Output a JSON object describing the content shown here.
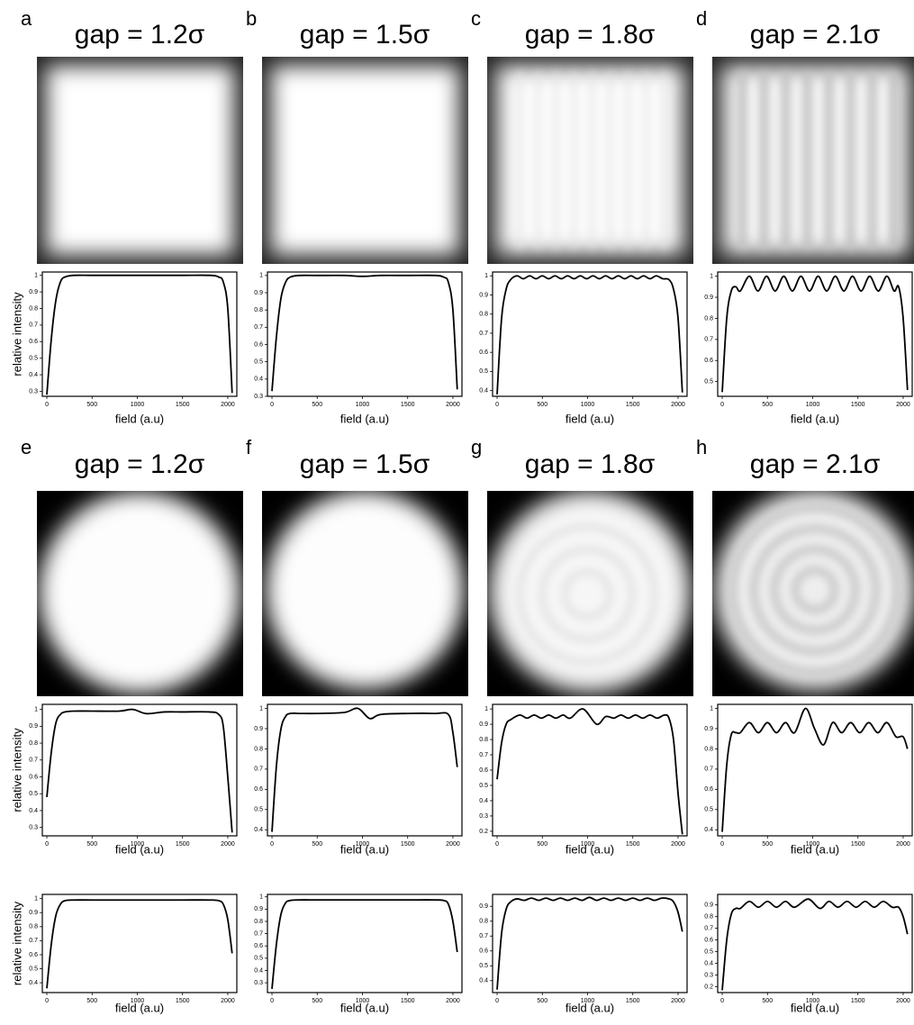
{
  "panels": [
    {
      "label": "a",
      "title": "gap = 1.2σ"
    },
    {
      "label": "b",
      "title": "gap = 1.5σ"
    },
    {
      "label": "c",
      "title": "gap = 1.8σ"
    },
    {
      "label": "d",
      "title": "gap = 2.1σ"
    },
    {
      "label": "e",
      "title": "gap = 1.2σ"
    },
    {
      "label": "f",
      "title": "gap = 1.5σ"
    },
    {
      "label": "g",
      "title": "gap = 1.8σ"
    },
    {
      "label": "h",
      "title": "gap = 2.1σ"
    }
  ],
  "chart_data": [
    {
      "type": "line",
      "ylabel": "relative intensity",
      "xlabel": "field (a.u)",
      "xlim": [
        -50,
        2100
      ],
      "xticks": [
        0,
        500,
        1000,
        1500,
        2000
      ],
      "ylim": [
        0.27,
        1.02
      ],
      "yticks": [
        0.3,
        0.4,
        0.5,
        0.6,
        0.7,
        0.8,
        0.9,
        1.0
      ],
      "x": [
        0,
        50,
        100,
        150,
        200,
        300,
        500,
        800,
        1000,
        1200,
        1500,
        1800,
        1900,
        1950,
        2000,
        2048
      ],
      "series": [
        {
          "color": "#000000",
          "values": [
            0.28,
            0.62,
            0.85,
            0.96,
            0.99,
            1.0,
            1.0,
            1.0,
            1.0,
            1.0,
            1.0,
            1.0,
            0.99,
            0.96,
            0.8,
            0.29
          ]
        }
      ]
    },
    {
      "type": "line",
      "xlabel": "field (a.u)",
      "xlim": [
        -50,
        2100
      ],
      "xticks": [
        0,
        500,
        1000,
        1500,
        2000
      ],
      "ylim": [
        0.3,
        1.02
      ],
      "yticks": [
        0.3,
        0.4,
        0.5,
        0.6,
        0.7,
        0.8,
        0.9,
        1.0
      ],
      "x": [
        0,
        50,
        100,
        150,
        200,
        300,
        500,
        800,
        1000,
        1200,
        1500,
        1800,
        1900,
        1950,
        2000,
        2048
      ],
      "series": [
        {
          "color": "#000000",
          "values": [
            0.33,
            0.65,
            0.87,
            0.96,
            0.99,
            1.0,
            1.0,
            1.0,
            0.995,
            1.0,
            1.0,
            1.0,
            0.99,
            0.96,
            0.8,
            0.34
          ]
        }
      ]
    },
    {
      "type": "line",
      "xlabel": "field (a.u)",
      "xlim": [
        -50,
        2100
      ],
      "xticks": [
        0,
        500,
        1000,
        1500,
        2000
      ],
      "ylim": [
        0.37,
        1.02
      ],
      "yticks": [
        0.4,
        0.5,
        0.6,
        0.7,
        0.8,
        0.9,
        1.0
      ],
      "x": [
        0,
        50,
        100,
        150,
        220,
        290,
        360,
        430,
        500,
        570,
        640,
        710,
        780,
        850,
        920,
        990,
        1060,
        1130,
        1200,
        1270,
        1340,
        1410,
        1480,
        1550,
        1620,
        1690,
        1760,
        1830,
        1900,
        1950,
        2000,
        2048
      ],
      "series": [
        {
          "color": "#000000",
          "values": [
            0.38,
            0.78,
            0.93,
            0.98,
            1.0,
            0.985,
            1.0,
            0.985,
            1.0,
            0.985,
            1.0,
            0.985,
            1.0,
            0.985,
            1.0,
            0.985,
            1.0,
            0.985,
            1.0,
            0.985,
            1.0,
            0.985,
            1.0,
            0.985,
            1.0,
            0.985,
            1.0,
            0.985,
            0.98,
            0.93,
            0.78,
            0.39
          ]
        }
      ]
    },
    {
      "type": "line",
      "xlabel": "field (a.u)",
      "xlim": [
        -50,
        2100
      ],
      "xticks": [
        0,
        500,
        1000,
        1500,
        2000
      ],
      "ylim": [
        0.43,
        1.02
      ],
      "yticks": [
        0.5,
        0.6,
        0.7,
        0.8,
        0.9,
        1.0
      ],
      "x": [
        0,
        50,
        100,
        150,
        200,
        300,
        395,
        490,
        585,
        680,
        775,
        870,
        965,
        1060,
        1155,
        1250,
        1345,
        1440,
        1535,
        1630,
        1725,
        1820,
        1900,
        1950,
        2000,
        2048
      ],
      "series": [
        {
          "color": "#000000",
          "values": [
            0.45,
            0.8,
            0.93,
            0.95,
            0.93,
            1.0,
            0.93,
            1.0,
            0.93,
            1.0,
            0.93,
            1.0,
            0.93,
            1.0,
            0.93,
            1.0,
            0.93,
            1.0,
            0.93,
            1.0,
            0.93,
            1.0,
            0.93,
            0.95,
            0.8,
            0.46
          ]
        }
      ]
    },
    {
      "type": "line",
      "ylabel": "relative intensity",
      "xlabel": "field (a.u)",
      "xlim": [
        -50,
        2100
      ],
      "xticks": [
        0,
        500,
        1000,
        1500,
        2000
      ],
      "ylim": [
        0.25,
        1.03
      ],
      "yticks": [
        0.3,
        0.4,
        0.5,
        0.6,
        0.7,
        0.8,
        0.9,
        1.0
      ],
      "x": [
        0,
        50,
        100,
        150,
        200,
        300,
        500,
        800,
        950,
        1100,
        1300,
        1500,
        1800,
        1900,
        1950,
        2000,
        2048
      ],
      "series": [
        {
          "color": "#000000",
          "values": [
            0.48,
            0.75,
            0.92,
            0.97,
            0.985,
            0.99,
            0.99,
            0.99,
            1.0,
            0.975,
            0.985,
            0.985,
            0.985,
            0.97,
            0.9,
            0.6,
            0.27
          ]
        }
      ]
    },
    {
      "type": "line",
      "xlabel": "field (a.u)",
      "xlim": [
        -50,
        2100
      ],
      "xticks": [
        0,
        500,
        1000,
        1500,
        2000
      ],
      "ylim": [
        0.37,
        1.02
      ],
      "yticks": [
        0.4,
        0.5,
        0.6,
        0.7,
        0.8,
        0.9,
        1.0
      ],
      "x": [
        0,
        50,
        100,
        150,
        200,
        300,
        500,
        800,
        950,
        1080,
        1200,
        1500,
        1800,
        1950,
        2000,
        2048
      ],
      "series": [
        {
          "color": "#000000",
          "values": [
            0.39,
            0.72,
            0.9,
            0.96,
            0.975,
            0.975,
            0.975,
            0.98,
            1.0,
            0.95,
            0.97,
            0.975,
            0.975,
            0.97,
            0.88,
            0.71
          ]
        }
      ]
    },
    {
      "type": "line",
      "xlabel": "field (a.u)",
      "xlim": [
        -50,
        2100
      ],
      "xticks": [
        0,
        500,
        1000,
        1500,
        2000
      ],
      "ylim": [
        0.17,
        1.03
      ],
      "yticks": [
        0.2,
        0.3,
        0.4,
        0.5,
        0.6,
        0.7,
        0.8,
        0.9,
        1.0
      ],
      "x": [
        0,
        50,
        100,
        150,
        250,
        330,
        410,
        490,
        570,
        650,
        730,
        810,
        950,
        1100,
        1200,
        1290,
        1370,
        1450,
        1530,
        1610,
        1690,
        1770,
        1850,
        1900,
        1950,
        2000,
        2048
      ],
      "series": [
        {
          "color": "#000000",
          "values": [
            0.54,
            0.78,
            0.9,
            0.93,
            0.96,
            0.94,
            0.96,
            0.94,
            0.96,
            0.94,
            0.96,
            0.94,
            1.0,
            0.9,
            0.95,
            0.94,
            0.96,
            0.94,
            0.96,
            0.94,
            0.96,
            0.94,
            0.96,
            0.94,
            0.8,
            0.45,
            0.18
          ]
        }
      ]
    },
    {
      "type": "line",
      "xlabel": "field (a.u)",
      "xlim": [
        -50,
        2100
      ],
      "xticks": [
        0,
        500,
        1000,
        1500,
        2000
      ],
      "ylim": [
        0.37,
        1.02
      ],
      "yticks": [
        0.4,
        0.5,
        0.6,
        0.7,
        0.8,
        0.9,
        1.0
      ],
      "x": [
        0,
        50,
        100,
        150,
        200,
        300,
        400,
        500,
        600,
        700,
        800,
        920,
        1020,
        1120,
        1220,
        1320,
        1420,
        1520,
        1620,
        1720,
        1820,
        1920,
        2000,
        2048
      ],
      "series": [
        {
          "color": "#000000",
          "values": [
            0.39,
            0.72,
            0.87,
            0.88,
            0.88,
            0.93,
            0.88,
            0.93,
            0.88,
            0.93,
            0.88,
            1.0,
            0.9,
            0.82,
            0.93,
            0.88,
            0.93,
            0.88,
            0.93,
            0.88,
            0.93,
            0.86,
            0.86,
            0.8
          ]
        }
      ]
    },
    {
      "type": "line",
      "ylabel": "relative intensity",
      "xlabel": "field (a.u)",
      "xlim": [
        -50,
        2100
      ],
      "xticks": [
        0,
        500,
        1000,
        1500,
        2000
      ],
      "ylim": [
        0.33,
        1.03
      ],
      "yticks": [
        0.4,
        0.5,
        0.6,
        0.7,
        0.8,
        0.9,
        1.0
      ],
      "x": [
        0,
        50,
        100,
        150,
        200,
        300,
        500,
        800,
        1000,
        1200,
        1500,
        1800,
        1900,
        1950,
        2000,
        2048
      ],
      "series": [
        {
          "color": "#000000",
          "values": [
            0.36,
            0.68,
            0.88,
            0.96,
            0.985,
            0.99,
            0.99,
            0.99,
            0.99,
            0.99,
            0.99,
            0.99,
            0.985,
            0.96,
            0.85,
            0.61
          ]
        }
      ]
    },
    {
      "type": "line",
      "xlabel": "field (a.u)",
      "xlim": [
        -50,
        2100
      ],
      "xticks": [
        0,
        500,
        1000,
        1500,
        2000
      ],
      "ylim": [
        0.22,
        1.02
      ],
      "yticks": [
        0.3,
        0.4,
        0.5,
        0.6,
        0.7,
        0.8,
        0.9,
        1.0
      ],
      "x": [
        0,
        50,
        100,
        150,
        200,
        300,
        500,
        800,
        1000,
        1200,
        1500,
        1800,
        1900,
        1950,
        2000,
        2048
      ],
      "series": [
        {
          "color": "#000000",
          "values": [
            0.25,
            0.62,
            0.86,
            0.95,
            0.97,
            0.975,
            0.975,
            0.975,
            0.975,
            0.975,
            0.975,
            0.975,
            0.97,
            0.94,
            0.8,
            0.55
          ]
        }
      ]
    },
    {
      "type": "line",
      "xlabel": "field (a.u)",
      "xlim": [
        -50,
        2100
      ],
      "xticks": [
        0,
        500,
        1000,
        1500,
        2000
      ],
      "ylim": [
        0.32,
        0.98
      ],
      "yticks": [
        0.4,
        0.5,
        0.6,
        0.7,
        0.8,
        0.9
      ],
      "x": [
        0,
        50,
        100,
        150,
        220,
        300,
        380,
        460,
        540,
        620,
        700,
        780,
        860,
        940,
        1020,
        1100,
        1180,
        1260,
        1340,
        1420,
        1500,
        1580,
        1660,
        1740,
        1820,
        1900,
        1950,
        2000,
        2048
      ],
      "series": [
        {
          "color": "#000000",
          "values": [
            0.34,
            0.72,
            0.88,
            0.93,
            0.95,
            0.94,
            0.955,
            0.94,
            0.955,
            0.94,
            0.955,
            0.94,
            0.955,
            0.94,
            0.96,
            0.94,
            0.955,
            0.94,
            0.955,
            0.94,
            0.955,
            0.94,
            0.955,
            0.94,
            0.955,
            0.95,
            0.93,
            0.86,
            0.73
          ]
        }
      ]
    },
    {
      "type": "line",
      "xlabel": "field (a.u)",
      "xlim": [
        -50,
        2100
      ],
      "xticks": [
        0,
        500,
        1000,
        1500,
        2000
      ],
      "ylim": [
        0.15,
        0.99
      ],
      "yticks": [
        0.2,
        0.3,
        0.4,
        0.5,
        0.6,
        0.7,
        0.8,
        0.9
      ],
      "x": [
        0,
        50,
        100,
        150,
        200,
        300,
        400,
        500,
        600,
        700,
        800,
        950,
        1080,
        1180,
        1280,
        1380,
        1480,
        1580,
        1680,
        1780,
        1880,
        1950,
        2000,
        2048
      ],
      "series": [
        {
          "color": "#000000",
          "values": [
            0.17,
            0.6,
            0.82,
            0.87,
            0.87,
            0.93,
            0.88,
            0.93,
            0.88,
            0.93,
            0.88,
            0.95,
            0.87,
            0.93,
            0.88,
            0.93,
            0.88,
            0.93,
            0.88,
            0.93,
            0.88,
            0.88,
            0.8,
            0.65
          ]
        }
      ]
    }
  ]
}
